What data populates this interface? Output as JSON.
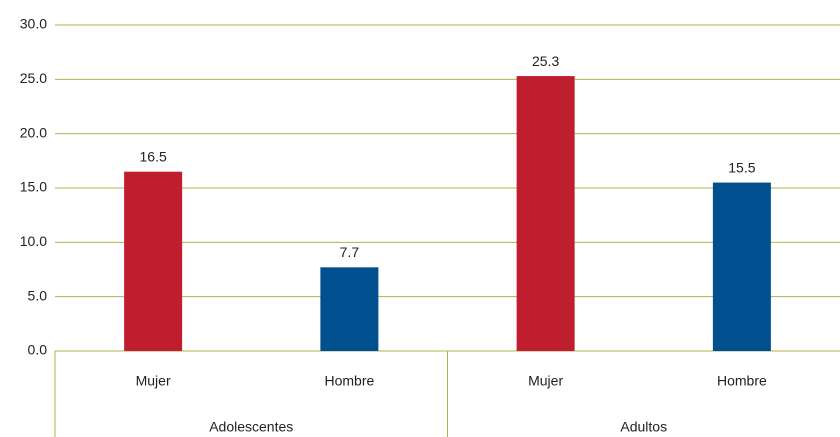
{
  "chart_data": {
    "type": "bar",
    "categories": [
      "Mujer",
      "Hombre",
      "Mujer",
      "Hombre"
    ],
    "groups": [
      "Adolescentes",
      "Adultos"
    ],
    "values": [
      16.5,
      7.7,
      25.3,
      15.5
    ],
    "colors": [
      "#be1e2d",
      "#00508f",
      "#be1e2d",
      "#00508f"
    ],
    "ylim": [
      0,
      30
    ],
    "yticks": [
      {
        "value": 0,
        "label": "0.0"
      },
      {
        "value": 5,
        "label": "5.0"
      },
      {
        "value": 10,
        "label": "10.0"
      },
      {
        "value": 15,
        "label": "15.0"
      },
      {
        "value": 20,
        "label": "20.0"
      },
      {
        "value": 25,
        "label": "25.0"
      },
      {
        "value": 30,
        "label": "30.0"
      }
    ],
    "grid": true
  }
}
